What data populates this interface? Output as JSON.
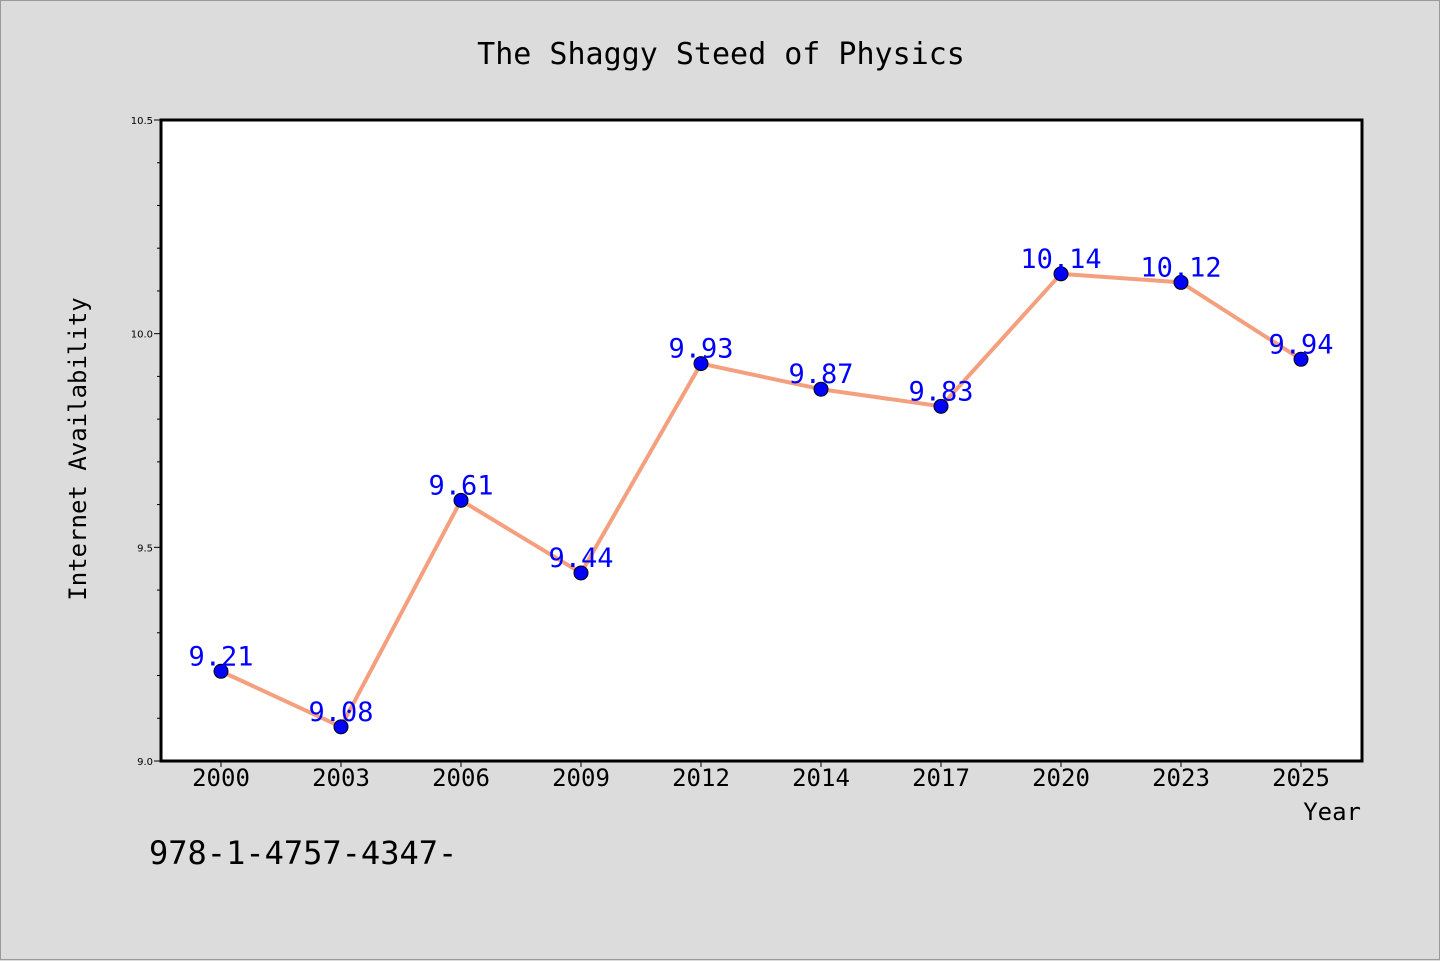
{
  "chart_data": {
    "type": "line",
    "title": "The Shaggy Steed of Physics",
    "xlabel": "Year",
    "ylabel": "Internet Availability",
    "categories": [
      "2000",
      "2003",
      "2006",
      "2009",
      "2012",
      "2014",
      "2017",
      "2020",
      "2023",
      "2025"
    ],
    "series": [
      {
        "values": [
          9.21,
          9.08,
          9.61,
          9.44,
          9.93,
          9.87,
          9.83,
          10.14,
          10.12,
          9.94
        ]
      }
    ],
    "data_labels": [
      "9.21",
      "9.08",
      "9.61",
      "9.44",
      "9.93",
      "9.87",
      "9.83",
      "10.14",
      "10.12",
      "9.94"
    ],
    "ylim": [
      9.0,
      10.5
    ],
    "yticks": [
      9.0,
      9.5,
      10.0,
      10.5
    ],
    "ytick_labels": [
      "9.0",
      "9.5",
      "10.0",
      "10.5"
    ],
    "grid": false,
    "legend": "none",
    "line_color": "#f4a07e",
    "marker_color": "#0000ff"
  },
  "footer": {
    "isbn_text": "978-1-4757-4347-"
  }
}
